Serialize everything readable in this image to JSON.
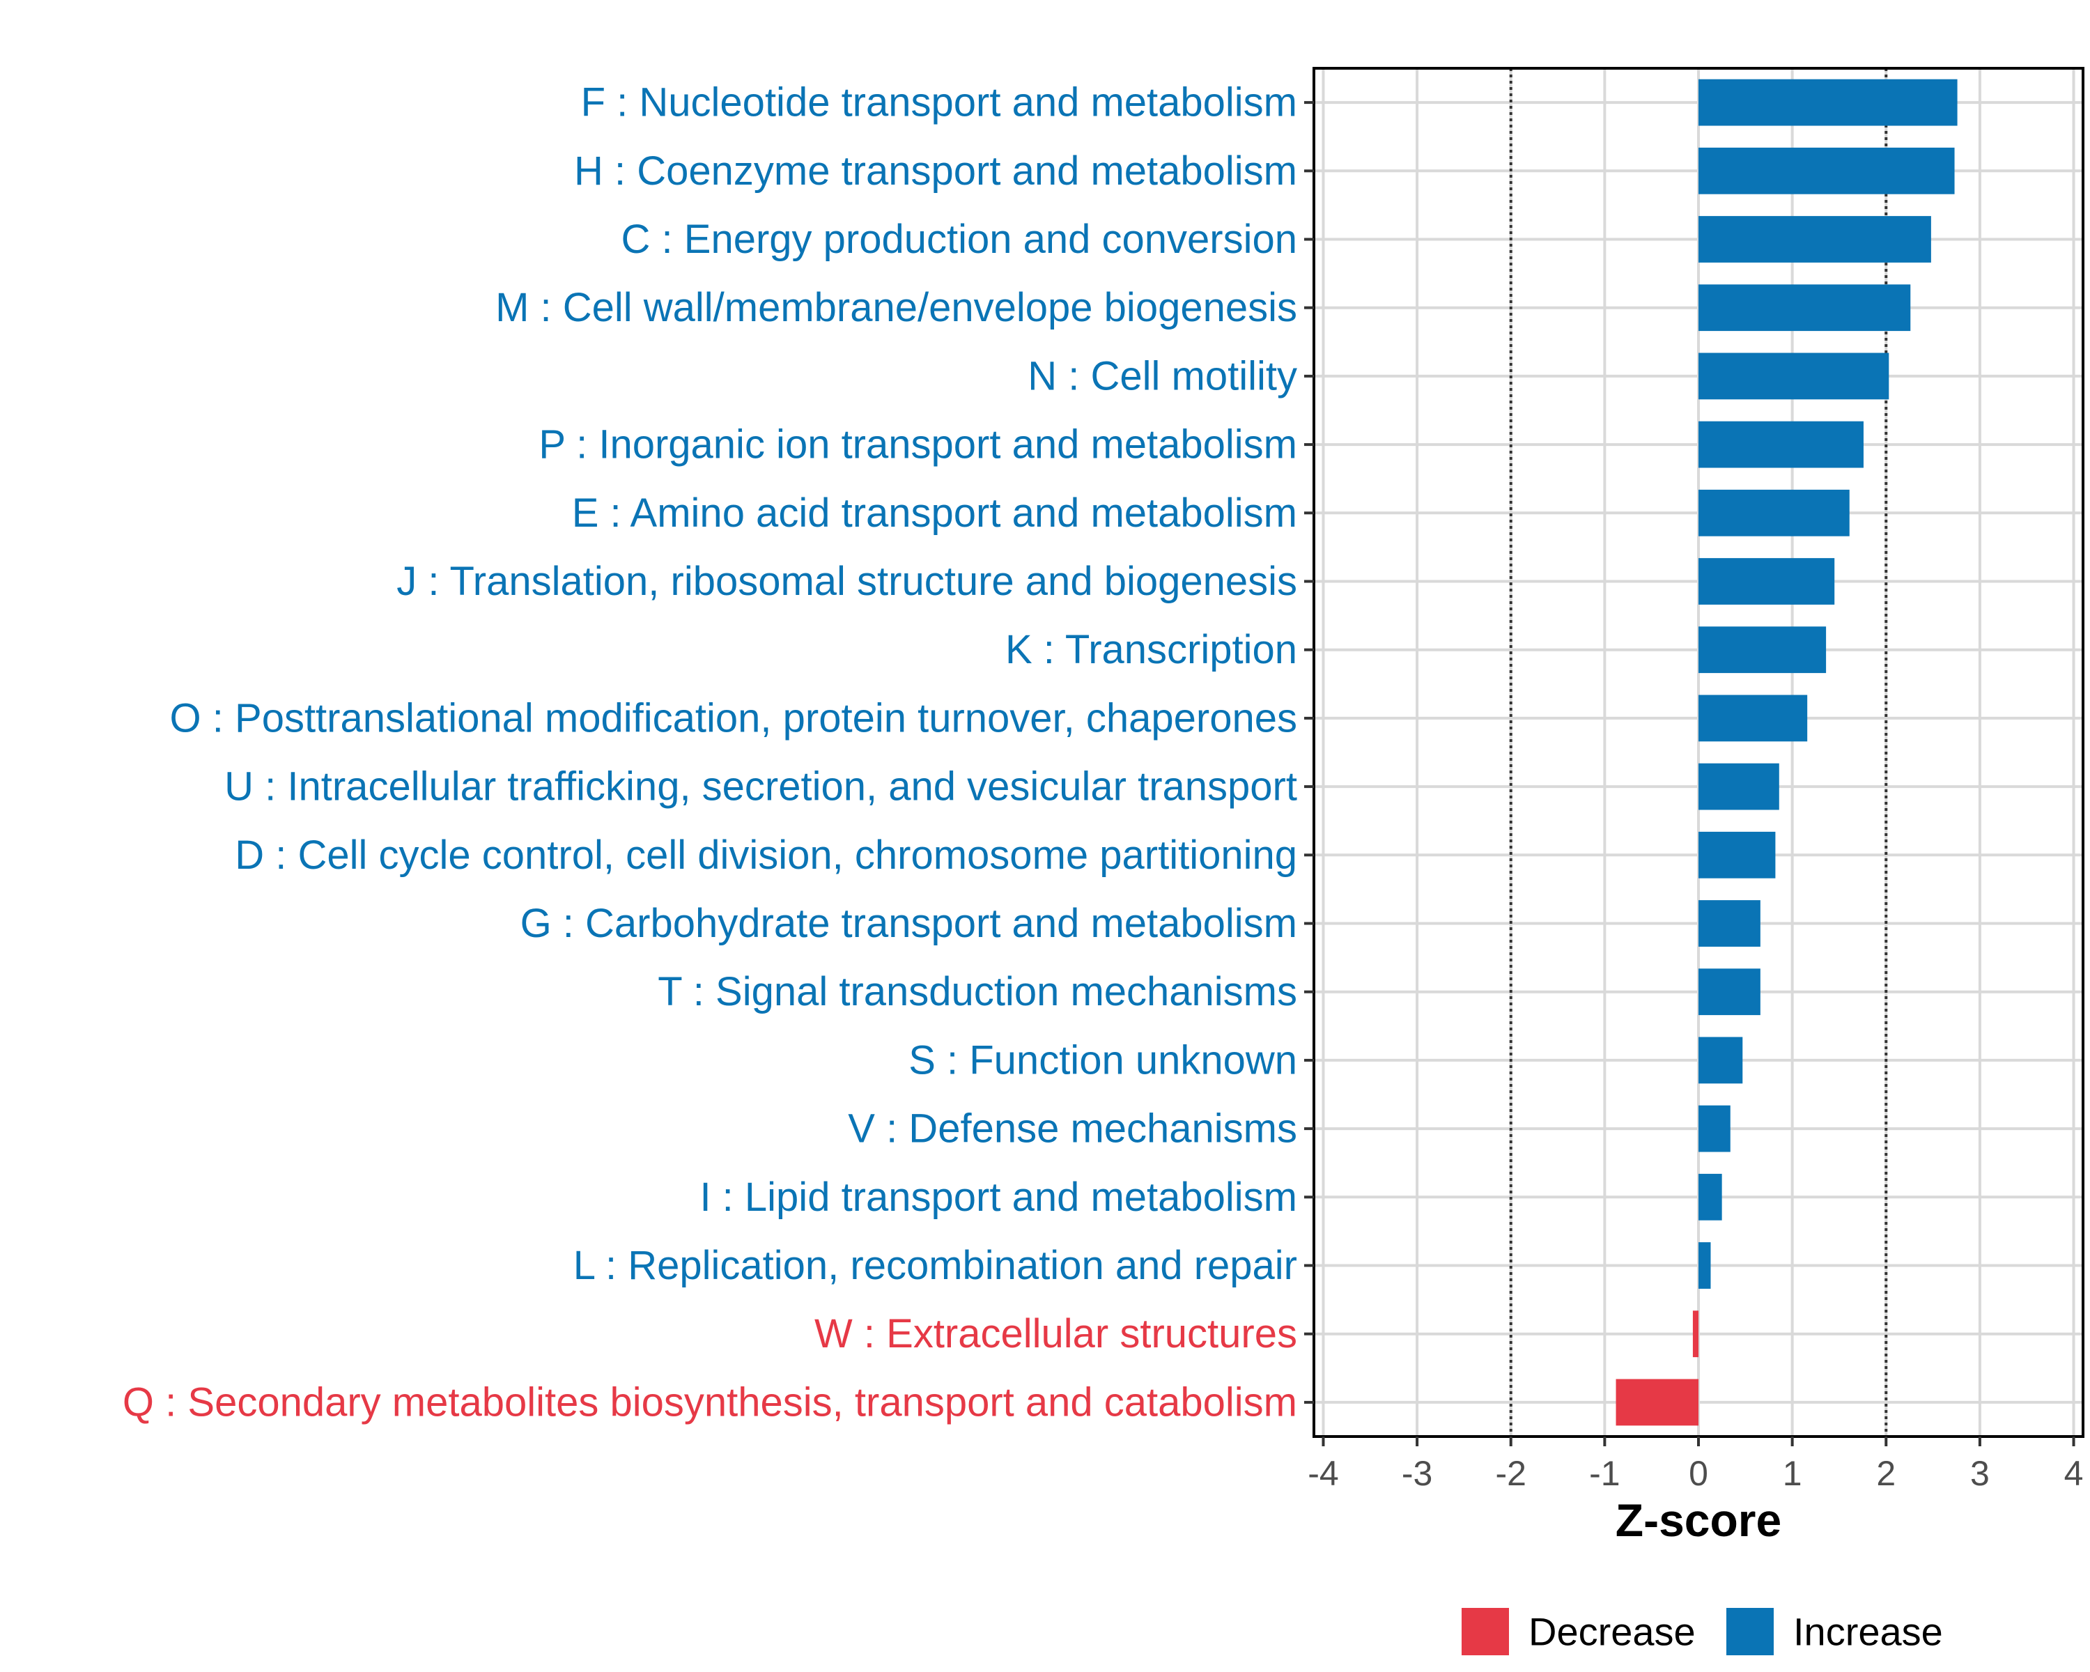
{
  "chart_data": {
    "type": "bar",
    "orientation": "horizontal",
    "title": "",
    "xlabel": "Z-score",
    "ylabel": "",
    "xlim": [
      -4.1,
      4.1
    ],
    "xticks": [
      "-4",
      "-3",
      "-2",
      "-1",
      "0",
      "1",
      "2",
      "3",
      "4"
    ],
    "reference_lines": [
      -2,
      2
    ],
    "grid": true,
    "legend_position": "bottom",
    "colors": {
      "Decrease": "#e63946",
      "Increase": "#0a74b5"
    },
    "legend": [
      {
        "label": "Decrease",
        "color": "#e63946"
      },
      {
        "label": "Increase",
        "color": "#0a74b5"
      }
    ],
    "categories": [
      "F : Nucleotide transport and metabolism",
      "H : Coenzyme transport and metabolism",
      "C : Energy production and conversion",
      "M : Cell wall/membrane/envelope biogenesis",
      "N : Cell motility",
      "P : Inorganic ion transport and metabolism",
      "E : Amino acid transport and metabolism",
      "J : Translation, ribosomal structure and biogenesis",
      "K : Transcription",
      "O : Posttranslational modification, protein turnover, chaperones",
      "U : Intracellular trafficking, secretion, and vesicular transport",
      "D : Cell cycle control, cell division, chromosome partitioning",
      "G : Carbohydrate transport and metabolism",
      "T : Signal transduction mechanisms",
      "S : Function unknown",
      "V : Defense mechanisms",
      "I : Lipid transport and metabolism",
      "L : Replication, recombination and repair",
      "W : Extracellular structures",
      "Q : Secondary metabolites biosynthesis, transport and catabolism"
    ],
    "values": [
      2.76,
      2.73,
      2.48,
      2.26,
      2.03,
      1.76,
      1.61,
      1.45,
      1.36,
      1.16,
      0.86,
      0.82,
      0.66,
      0.66,
      0.47,
      0.34,
      0.25,
      0.13,
      -0.06,
      -0.88
    ],
    "direction": [
      "Increase",
      "Increase",
      "Increase",
      "Increase",
      "Increase",
      "Increase",
      "Increase",
      "Increase",
      "Increase",
      "Increase",
      "Increase",
      "Increase",
      "Increase",
      "Increase",
      "Increase",
      "Increase",
      "Increase",
      "Increase",
      "Decrease",
      "Decrease"
    ]
  }
}
